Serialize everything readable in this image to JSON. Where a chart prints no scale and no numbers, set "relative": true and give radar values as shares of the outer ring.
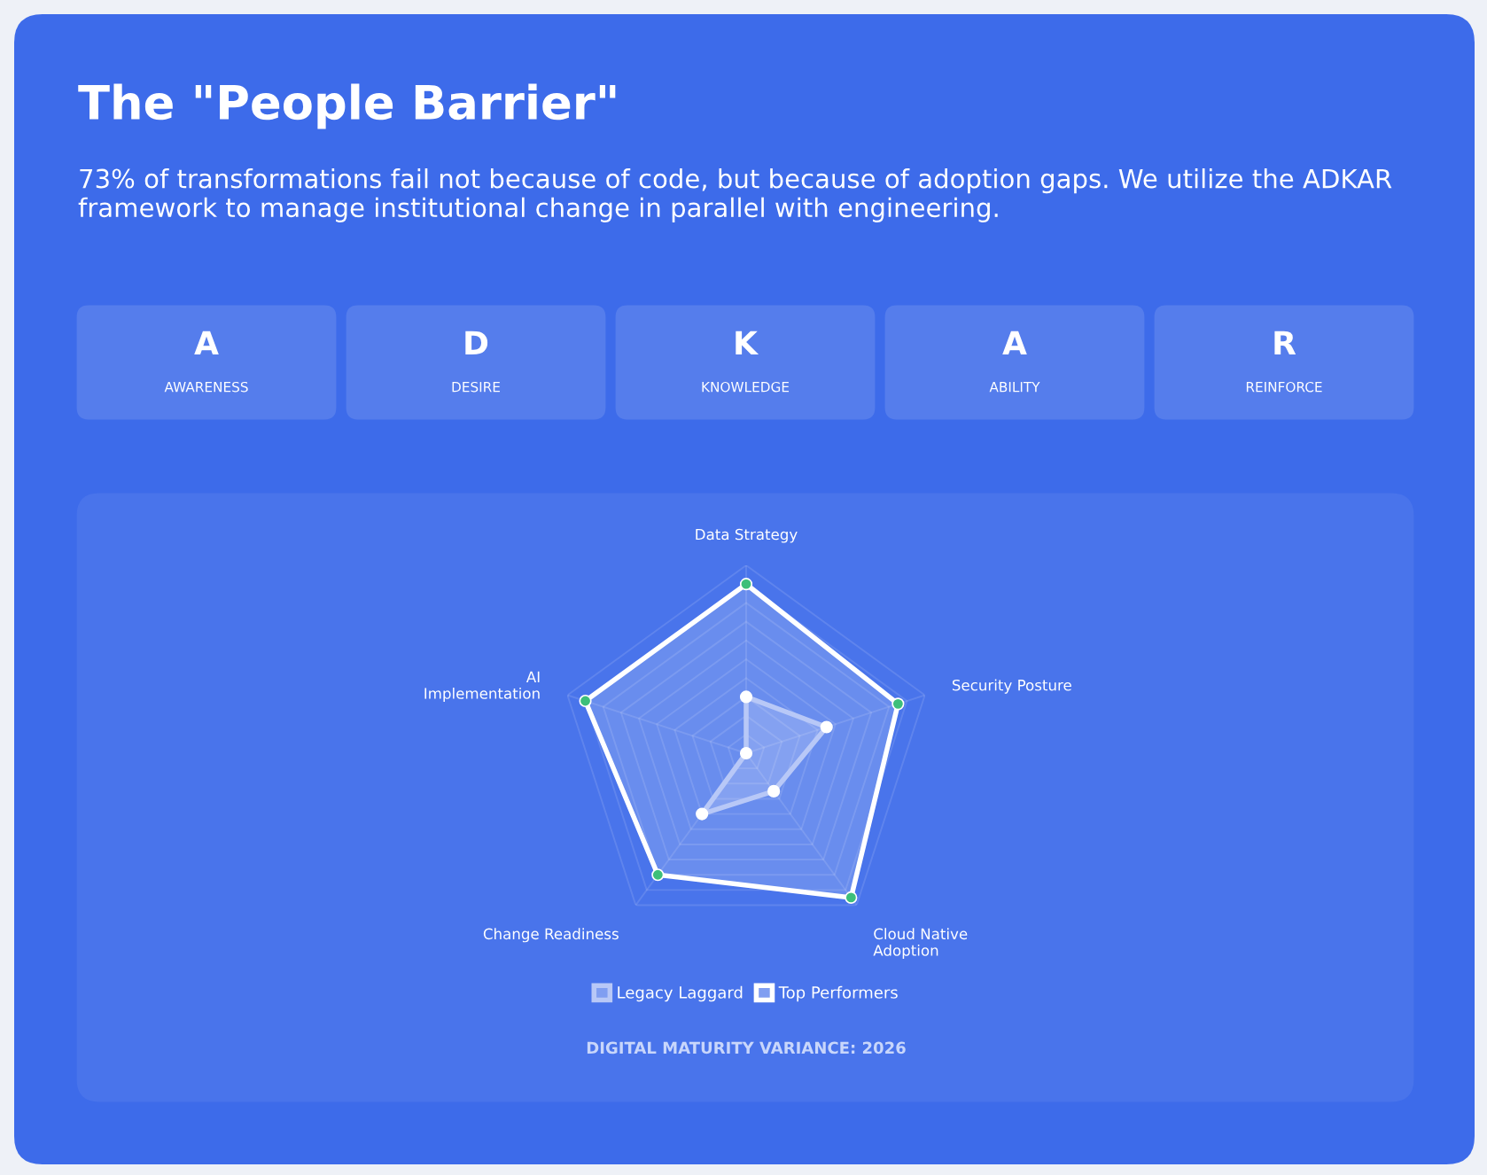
{
  "chart_data": [
    {
      "type": "other",
      "title": "The \"People Barrier\"",
      "subtitle": "73% of transformations fail not because of code, but because of adoption gaps. We utilize the ADKAR framework to manage institutional change in parallel with engineering.",
      "annotations": [
        "A",
        "AWARENESS",
        "D",
        "DESIRE",
        "K",
        "KNOWLEDGE",
        "A",
        "ABILITY",
        "R",
        "REINFORCE"
      ]
    },
    {
      "type": "radar",
      "relative": true,
      "grid": true,
      "legend": "bottom",
      "marker": "circle",
      "categories": [
        "Data Strategy",
        "Security Posture",
        "Cloud Native Adoption",
        "Change Readiness",
        "AI Implementation"
      ],
      "series": [
        {
          "name": "Legacy Laggard",
          "color": "#b8c8f7",
          "values": [
            0.3,
            0.45,
            0.25,
            0.4,
            0
          ]
        },
        {
          "name": "Top Performers",
          "color": "#ffffff",
          "values": [
            0.9,
            0.85,
            0.95,
            0.8,
            0.9
          ]
        }
      ],
      "annotations": [
        "DIGITAL MATURITY VARIANCE: 2026"
      ]
    }
  ]
}
